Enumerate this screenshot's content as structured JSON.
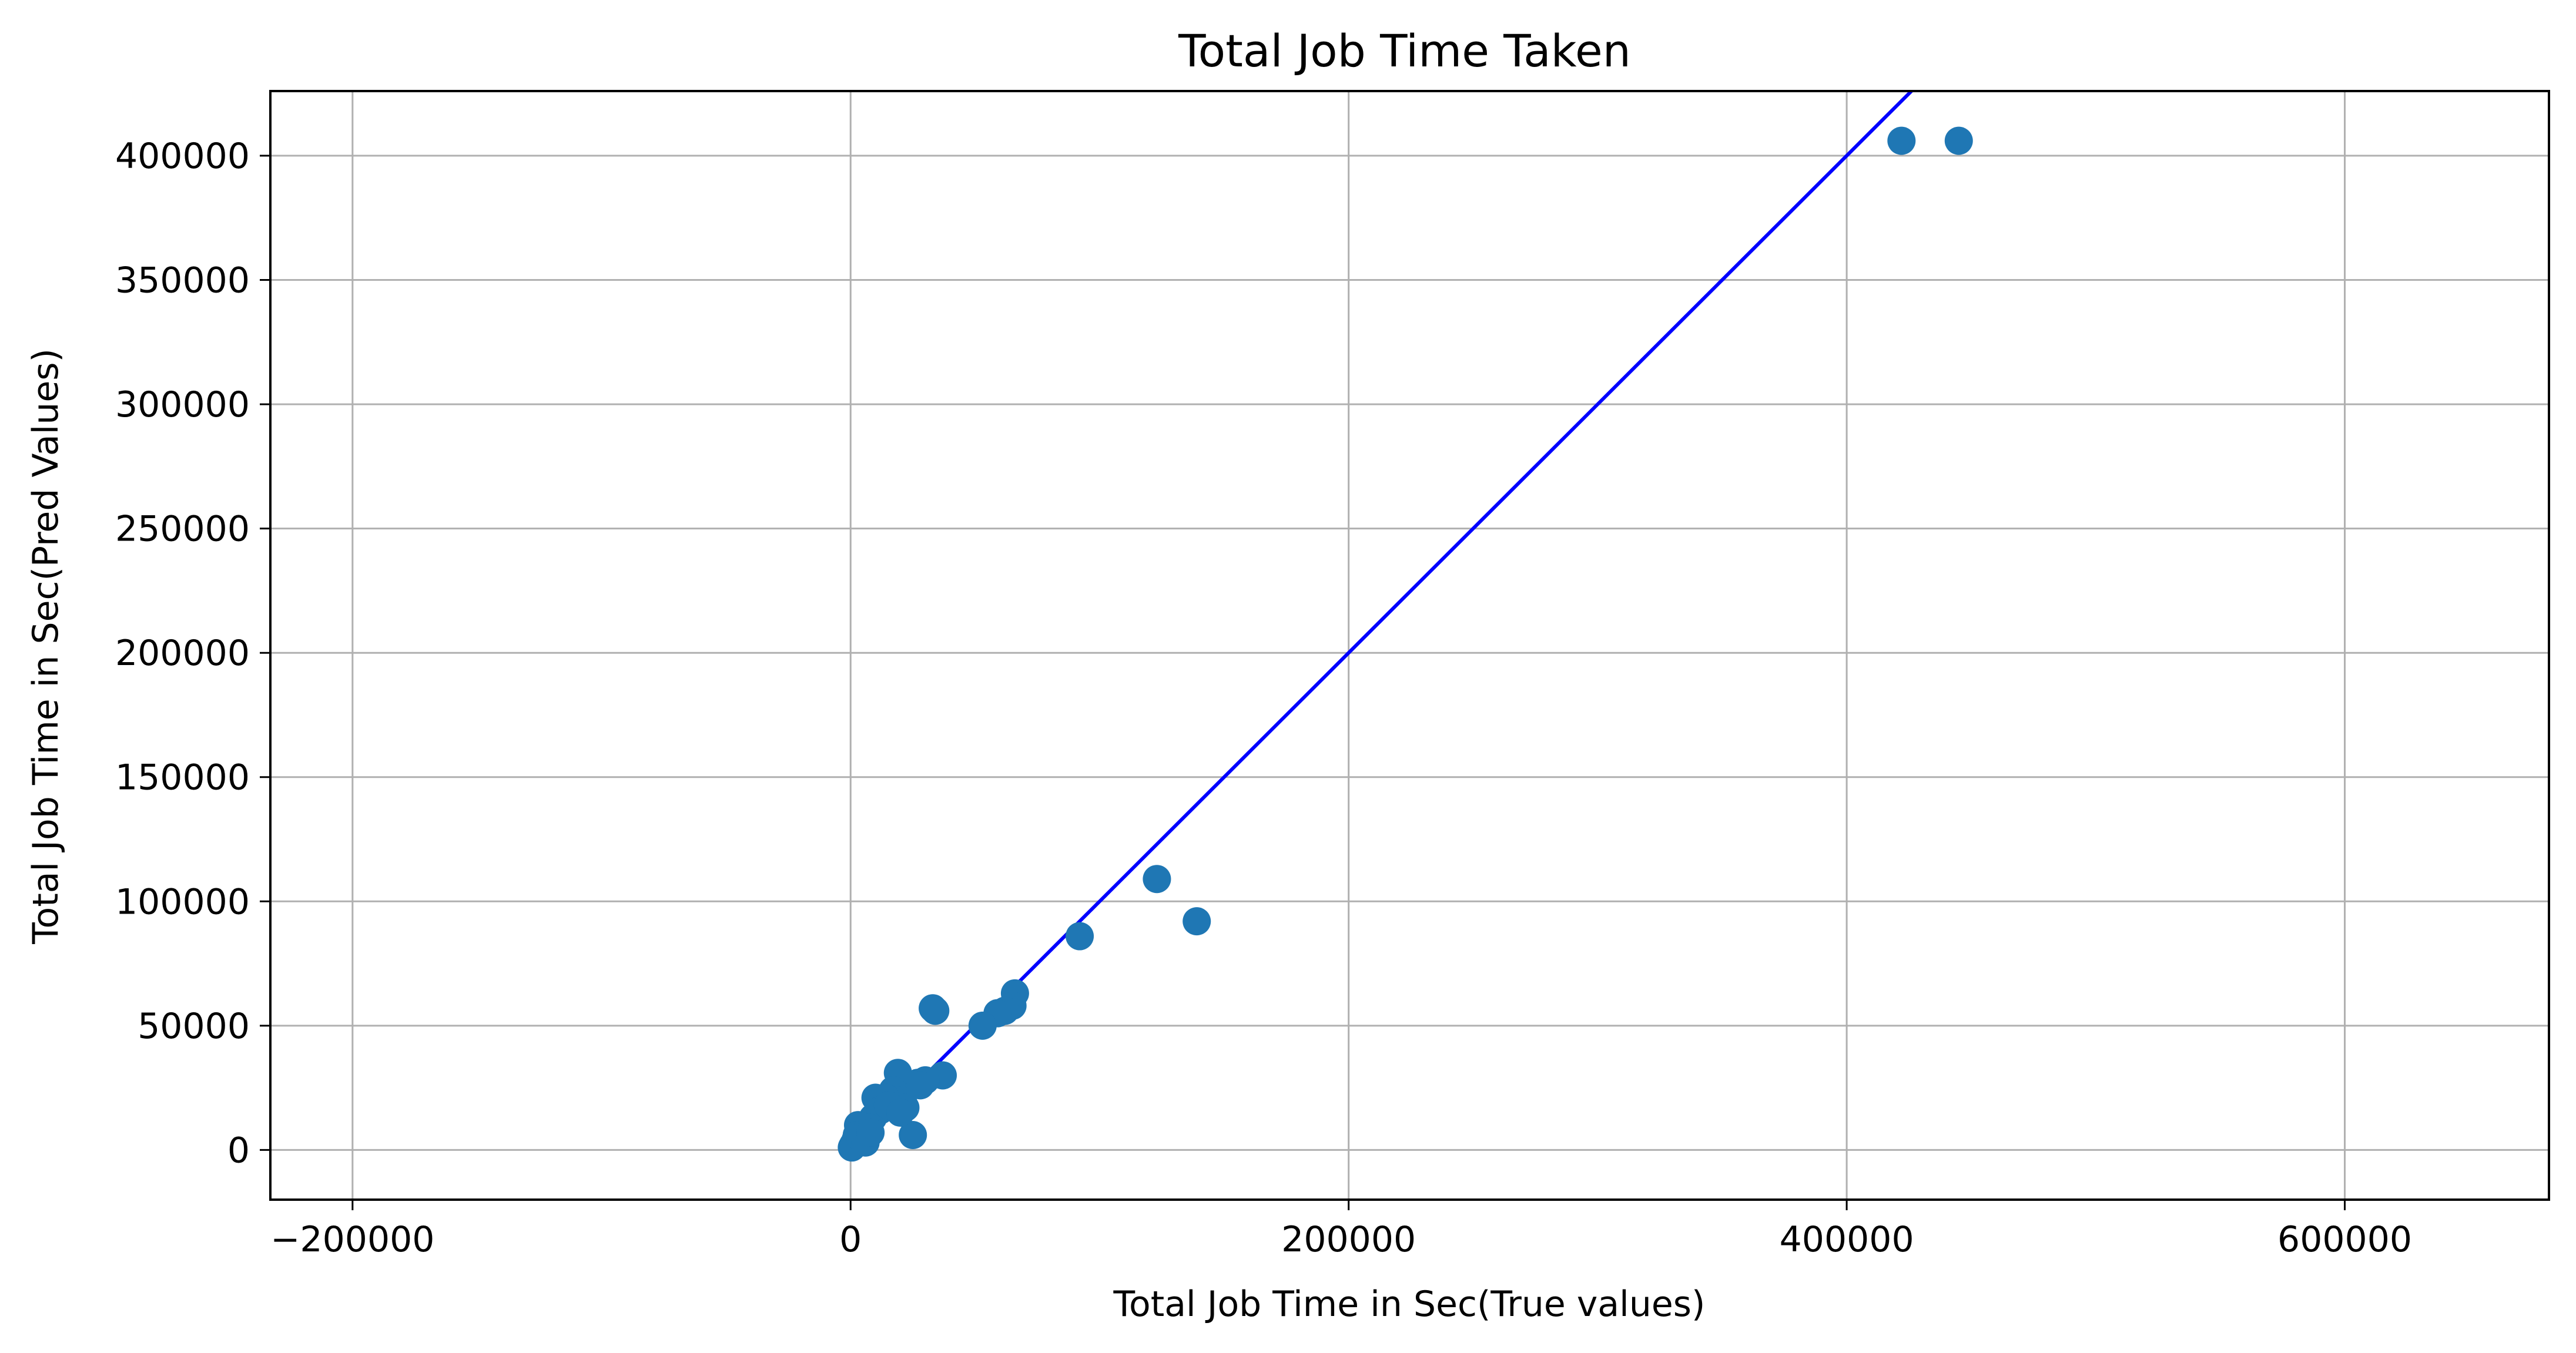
{
  "chart_data": {
    "type": "scatter",
    "title": "Total Job Time Taken",
    "xlabel": "Total Job Time in Sec(True values)",
    "ylabel": "Total Job Time in Sec(Pred Values)",
    "xlim": [
      -233000,
      682000
    ],
    "ylim": [
      -20000,
      426000
    ],
    "xticks": [
      -200000,
      0,
      200000,
      400000,
      600000
    ],
    "xtick_labels": [
      "−200000",
      "0",
      "200000",
      "400000",
      "600000"
    ],
    "yticks": [
      0,
      50000,
      100000,
      150000,
      200000,
      250000,
      300000,
      350000,
      400000
    ],
    "ytick_labels": [
      "0",
      "50000",
      "100000",
      "150000",
      "200000",
      "250000",
      "300000",
      "350000",
      "400000"
    ],
    "grid": true,
    "point_color": "#1f77b4",
    "line_color": "#0000ff",
    "reference_line": {
      "x": [
        0,
        426000
      ],
      "y": [
        0,
        426000
      ]
    },
    "points": [
      {
        "x": 422000,
        "y": 406000
      },
      {
        "x": 445000,
        "y": 406000
      },
      {
        "x": 123000,
        "y": 109000
      },
      {
        "x": 139000,
        "y": 92000
      },
      {
        "x": 92000,
        "y": 86000
      },
      {
        "x": 66000,
        "y": 63000
      },
      {
        "x": 65000,
        "y": 58000
      },
      {
        "x": 62000,
        "y": 56000
      },
      {
        "x": 59000,
        "y": 55000
      },
      {
        "x": 53000,
        "y": 50000
      },
      {
        "x": 33000,
        "y": 57000
      },
      {
        "x": 34000,
        "y": 56000
      },
      {
        "x": 37000,
        "y": 30000
      },
      {
        "x": 30000,
        "y": 28000
      },
      {
        "x": 27000,
        "y": 27000
      },
      {
        "x": 19000,
        "y": 31000
      },
      {
        "x": 17000,
        "y": 24000
      },
      {
        "x": 21000,
        "y": 20000
      },
      {
        "x": 22000,
        "y": 17000
      },
      {
        "x": 14000,
        "y": 21000
      },
      {
        "x": 10000,
        "y": 21000
      },
      {
        "x": 9000,
        "y": 13000
      },
      {
        "x": 12000,
        "y": 16000
      },
      {
        "x": 25000,
        "y": 6000
      },
      {
        "x": 7000,
        "y": 9000
      },
      {
        "x": 5000,
        "y": 7000
      },
      {
        "x": 3000,
        "y": 10000
      },
      {
        "x": 2000,
        "y": 4000
      },
      {
        "x": 1000,
        "y": 2000
      },
      {
        "x": 500,
        "y": 1000
      },
      {
        "x": 2500,
        "y": 6000
      },
      {
        "x": 4000,
        "y": 5000
      },
      {
        "x": 6000,
        "y": 3000
      },
      {
        "x": 8000,
        "y": 7000
      },
      {
        "x": 15000,
        "y": 18000
      },
      {
        "x": 20000,
        "y": 15000
      },
      {
        "x": 28000,
        "y": 26000
      }
    ]
  }
}
